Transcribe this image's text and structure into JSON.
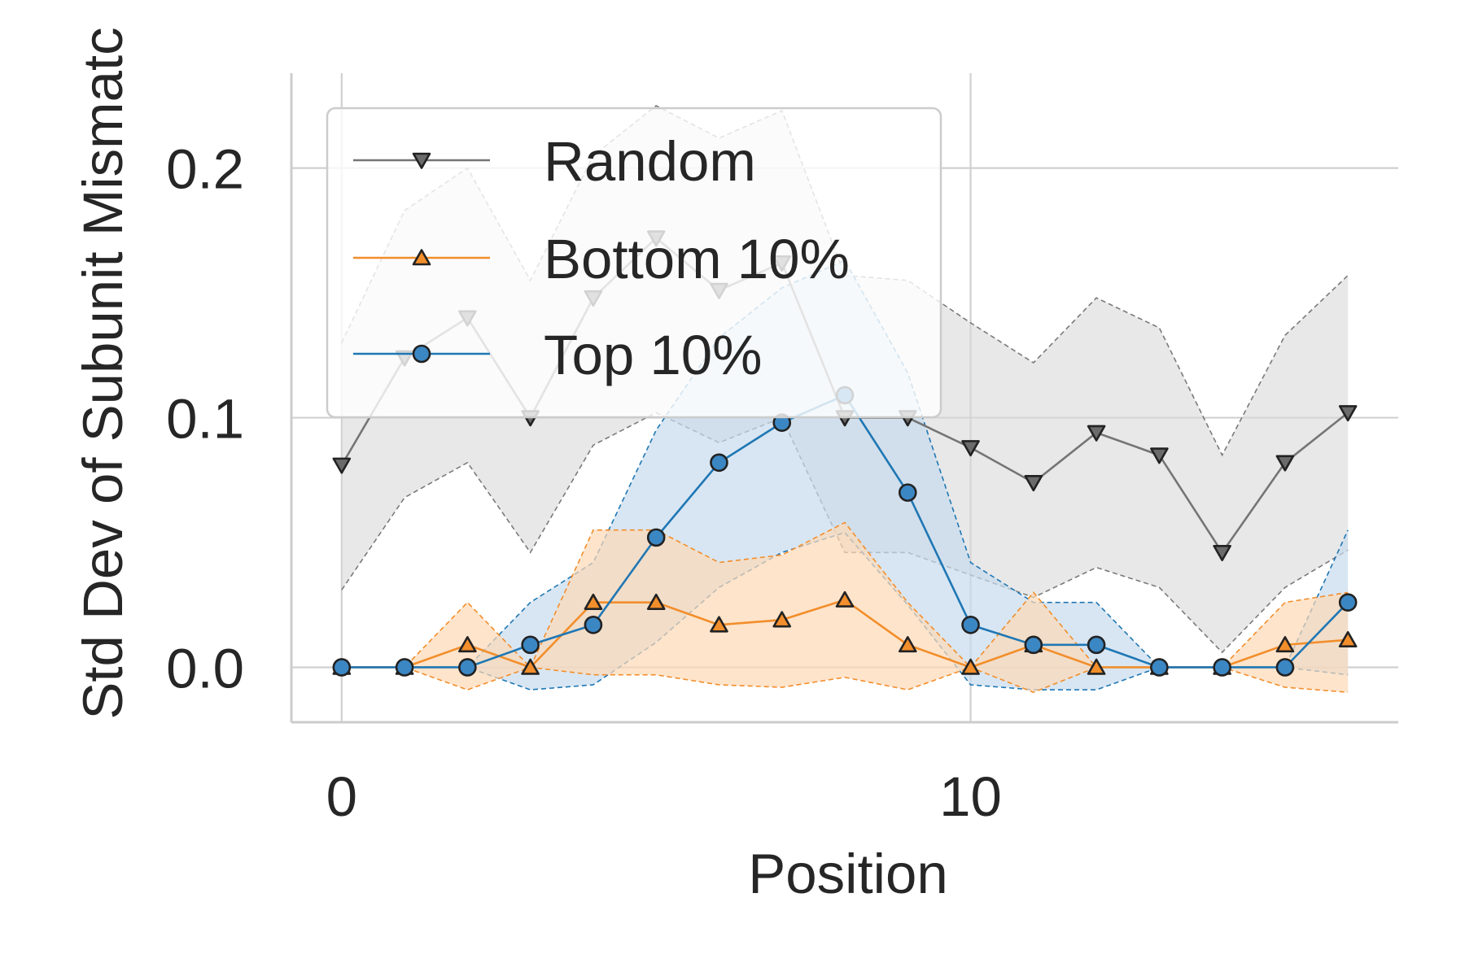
{
  "chart_data": {
    "type": "line",
    "title": "",
    "xlabel": "Position",
    "ylabel": "Std Dev of Subunit Mismatc",
    "xlim": [
      -0.8,
      16.8
    ],
    "ylim": [
      -0.022,
      0.238
    ],
    "x_ticks": [
      0,
      10
    ],
    "x_tick_labels": [
      "0",
      "10"
    ],
    "y_ticks": [
      0.0,
      0.1,
      0.2
    ],
    "y_tick_labels": [
      "0.0",
      "0.1",
      "0.2"
    ],
    "grid": true,
    "legend_position": "upper-left",
    "x": [
      0,
      1,
      2,
      3,
      4,
      5,
      6,
      7,
      8,
      9,
      10,
      11,
      12,
      13,
      14,
      15,
      16
    ],
    "series": [
      {
        "name": "Random",
        "color": "#757575",
        "marker": "triangle-down",
        "values": [
          0.081,
          0.124,
          0.14,
          0.1,
          0.148,
          0.172,
          0.151,
          0.162,
          0.1,
          0.1,
          0.088,
          0.074,
          0.094,
          0.085,
          0.046,
          0.082,
          0.102
        ],
        "lower": [
          0.031,
          0.068,
          0.082,
          0.046,
          0.089,
          0.102,
          0.09,
          0.1,
          0.046,
          0.046,
          0.037,
          0.028,
          0.04,
          0.032,
          0.006,
          0.032,
          0.047
        ],
        "upper": [
          0.13,
          0.183,
          0.2,
          0.155,
          0.205,
          0.225,
          0.212,
          0.223,
          0.157,
          0.155,
          0.138,
          0.122,
          0.148,
          0.136,
          0.085,
          0.133,
          0.157
        ]
      },
      {
        "name": "Bottom 10%",
        "color": "#f28e2b",
        "fill": "#fdd9b5",
        "marker": "triangle-up",
        "values": [
          0.0,
          0.0,
          0.009,
          0.0,
          0.026,
          0.026,
          0.017,
          0.019,
          0.027,
          0.009,
          0.0,
          0.009,
          0.0,
          0.0,
          0.0,
          0.009,
          0.011
        ],
        "lower": [
          0.0,
          0.0,
          -0.009,
          0.0,
          -0.003,
          -0.003,
          -0.007,
          -0.008,
          -0.004,
          -0.009,
          0.0,
          -0.01,
          0.0,
          0.0,
          0.0,
          -0.008,
          -0.01
        ],
        "upper": [
          0.0,
          0.0,
          0.026,
          0.0,
          0.055,
          0.055,
          0.042,
          0.045,
          0.058,
          0.026,
          0.0,
          0.03,
          0.0,
          0.0,
          0.0,
          0.026,
          0.03
        ]
      },
      {
        "name": "Top 10%",
        "color": "#1f77b4",
        "fill": "#c7dcee",
        "marker": "circle",
        "values": [
          0.0,
          0.0,
          0.0,
          0.009,
          0.017,
          0.052,
          0.082,
          0.098,
          0.109,
          0.07,
          0.017,
          0.009,
          0.009,
          0.0,
          0.0,
          0.0,
          0.026
        ],
        "lower": [
          0.0,
          0.0,
          0.0,
          -0.009,
          -0.007,
          0.01,
          0.032,
          0.046,
          0.054,
          0.025,
          -0.007,
          -0.009,
          -0.009,
          0.0,
          0.0,
          0.0,
          -0.003
        ],
        "upper": [
          0.0,
          0.0,
          0.0,
          0.026,
          0.042,
          0.095,
          0.132,
          0.152,
          0.163,
          0.118,
          0.042,
          0.026,
          0.026,
          0.0,
          0.0,
          0.0,
          0.055
        ]
      }
    ]
  }
}
